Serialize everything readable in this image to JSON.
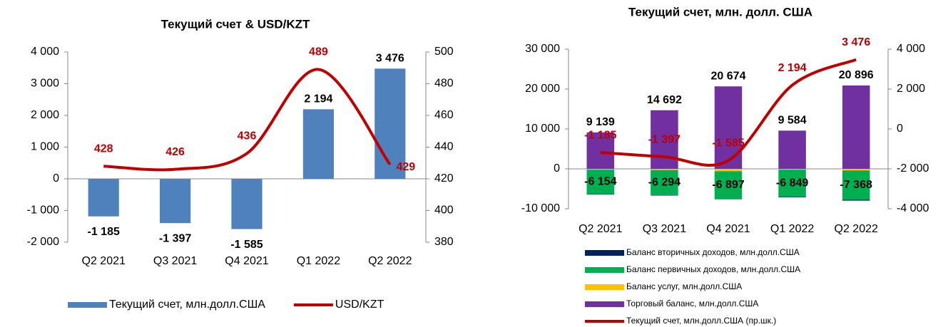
{
  "chart_data": [
    {
      "type": "combo",
      "title": "Текущий счет & USD/KZT",
      "categories": [
        "Q2 2021",
        "Q3 2021",
        "Q4 2021",
        "Q1 2022",
        "Q2 2022"
      ],
      "series": [
        {
          "name": "Текущий счет, млн.долл.США",
          "type": "bar",
          "color": "#4f81bd",
          "values": [
            -1185,
            -1397,
            -1585,
            2194,
            3476
          ],
          "value_labels": [
            "-1 185",
            "-1 397",
            "-1 585",
            "2 194",
            "3 476"
          ]
        },
        {
          "name": "USD/KZT",
          "type": "line",
          "axis": "y2",
          "color": "#c00000",
          "values": [
            428,
            426,
            436,
            489,
            429
          ]
        }
      ],
      "ylim": [
        -2000,
        4000
      ],
      "yticks": [
        {
          "value": -2000,
          "label": "-2 000"
        },
        {
          "value": -1000,
          "label": "-1 000"
        },
        0,
        {
          "value": 1000,
          "label": "1 000"
        },
        {
          "value": 2000,
          "label": "2 000"
        },
        {
          "value": 3000,
          "label": "3 000"
        },
        {
          "value": 4000,
          "label": "4 000"
        }
      ],
      "y2lim": [
        380,
        500
      ],
      "y2ticks": [
        380,
        400,
        420,
        440,
        460,
        480,
        500
      ],
      "grid": false,
      "legend": "bottom"
    },
    {
      "type": "combo",
      "title": "Текущий счет, млн. долл. США",
      "categories": [
        "Q2 2021",
        "Q3 2021",
        "Q4 2021",
        "Q1 2022",
        "Q2 2022"
      ],
      "series": [
        {
          "name": "Торговый баланс, млн.долл.США",
          "type": "bar",
          "color": "#7030a0",
          "values": [
            9139,
            14692,
            20674,
            9584,
            20896
          ],
          "value_labels": [
            "9 139",
            "14 692",
            "20 674",
            "9 584",
            "20 896"
          ]
        },
        {
          "name": "Баланс услуг, млн.долл.США",
          "type": "bar",
          "color": "#ffc000",
          "values": [
            -200,
            -300,
            -600,
            -200,
            -400
          ]
        },
        {
          "name": "Баланс первичных доходов,  млн.долл.США",
          "type": "bar",
          "color": "#00b050",
          "values": [
            -6154,
            -6294,
            -6897,
            -6849,
            -7368
          ],
          "value_labels": [
            "-6 154",
            "-6 294",
            "-6 897",
            "-6 849",
            "-7 368"
          ]
        },
        {
          "name": "Баланс вторичных доходов,  млн.долл.США",
          "type": "bar",
          "color": "#002060",
          "values": [
            -100,
            -100,
            -100,
            -100,
            -200
          ]
        },
        {
          "name": "Текущий счет,  млн.долл.США (пр.шк.)",
          "type": "line",
          "axis": "y2",
          "color": "#c00000",
          "values": [
            -1185,
            -1397,
            -1585,
            2194,
            3476
          ],
          "value_labels": [
            "-1 185",
            "-1 397",
            "-1 585",
            "2 194",
            "3 476"
          ]
        }
      ],
      "ylim": [
        -10000,
        30000
      ],
      "yticks": [
        {
          "value": -10000,
          "label": "-10 000"
        },
        0,
        {
          "value": 10000,
          "label": "10 000"
        },
        {
          "value": 20000,
          "label": "20 000"
        },
        {
          "value": 30000,
          "label": "30 000"
        }
      ],
      "y2lim": [
        -4000,
        4000
      ],
      "y2ticks": [
        {
          "value": -4000,
          "label": "-4 000"
        },
        {
          "value": -2000,
          "label": "-2 000"
        },
        0,
        {
          "value": 2000,
          "label": "2 000"
        },
        {
          "value": 4000,
          "label": "4 000"
        }
      ],
      "grid": false,
      "legend": "bottom"
    }
  ]
}
